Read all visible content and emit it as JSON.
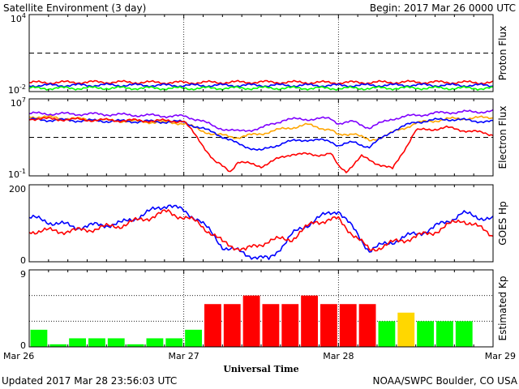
{
  "header": {
    "title": "Satellite Environment (3 day)",
    "begin_label": "Begin:  2017 Mar 26 0000 UTC"
  },
  "footer": {
    "updated": "Updated 2017 Mar 28 23:56:03 UTC",
    "credit": "NOAA/SWPC Boulder, CO USA",
    "xlabel": "Universal Time"
  },
  "colors": {
    "red": "#ff0000",
    "blue": "#0000ff",
    "green": "#00ff00",
    "purple": "#7f00ff",
    "orange": "#ffa500",
    "yellow": "#ffd700"
  },
  "chart_data": [
    {
      "type": "line",
      "name": "proton",
      "ylabel": "Proton Flux",
      "scale": "log",
      "ylim": [
        0.01,
        10000
      ],
      "y_tick_labels": [
        "10^4",
        "10^-2"
      ],
      "threshold": 10,
      "x_days": [
        0,
        3
      ],
      "series": [
        {
          "color": "red",
          "x": [
            0,
            0.5,
            1,
            1.5,
            2,
            2.5,
            3
          ],
          "values": [
            0.05,
            0.055,
            0.05,
            0.055,
            0.05,
            0.055,
            0.05
          ]
        },
        {
          "color": "blue",
          "x": [
            0,
            0.5,
            1,
            1.5,
            2,
            2.5,
            3
          ],
          "values": [
            0.03,
            0.032,
            0.03,
            0.031,
            0.03,
            0.032,
            0.03
          ]
        },
        {
          "color": "green",
          "x": [
            0,
            0.5,
            1,
            1.5,
            2,
            2.5,
            3
          ],
          "values": [
            0.018,
            0.019,
            0.018,
            0.019,
            0.018,
            0.019,
            0.018
          ]
        }
      ]
    },
    {
      "type": "line",
      "name": "electron",
      "ylabel": "Electron Flux",
      "scale": "log",
      "ylim": [
        0.1,
        10000000
      ],
      "y_tick_labels": [
        "10^7",
        "10^-1"
      ],
      "threshold": 1000,
      "x_days": [
        0,
        3
      ],
      "series": [
        {
          "color": "purple",
          "x": [
            0,
            0.5,
            1,
            1.1,
            1.2,
            1.35,
            1.5,
            1.65,
            1.8,
            1.95,
            2,
            2.1,
            2.2,
            2.35,
            2.5,
            2.7,
            3
          ],
          "values": [
            300000,
            250000,
            150000,
            70000,
            12000,
            4000,
            9000,
            70000,
            80000,
            90000,
            30000,
            40000,
            10000,
            90000,
            200000,
            400000,
            500000
          ]
        },
        {
          "color": "orange",
          "x": [
            0,
            0.5,
            1,
            1.1,
            1.2,
            1.35,
            1.5,
            1.65,
            1.8,
            1.95,
            2,
            2.1,
            2.2,
            2.35,
            2.5,
            2.7,
            3
          ],
          "values": [
            150000,
            60000,
            30000,
            6000,
            2000,
            1000,
            2500,
            8000,
            20000,
            6000,
            1500,
            3000,
            400,
            3000,
            30000,
            80000,
            120000
          ]
        },
        {
          "color": "blue",
          "x": [
            0,
            0.5,
            1,
            1.1,
            1.2,
            1.35,
            1.5,
            1.65,
            1.8,
            1.95,
            2,
            2.1,
            2.2,
            2.35,
            2.5,
            2.7,
            3
          ],
          "values": [
            70000,
            50000,
            40000,
            10000,
            3000,
            200,
            40,
            300,
            600,
            400,
            150,
            300,
            100,
            5000,
            40000,
            80000,
            40000
          ]
        },
        {
          "color": "red",
          "x": [
            0,
            0.5,
            1,
            1.1,
            1.2,
            1.3,
            1.35,
            1.5,
            1.6,
            1.7,
            1.85,
            1.95,
            2,
            2.05,
            2.15,
            2.25,
            2.35,
            2.5,
            2.7,
            3
          ],
          "values": [
            90000,
            60000,
            50000,
            500,
            3,
            0.3,
            3,
            1,
            5,
            20,
            15,
            20,
            1,
            0.3,
            10,
            2,
            0.5,
            5000,
            10000,
            2000
          ]
        }
      ]
    },
    {
      "type": "line",
      "name": "goes_hp",
      "ylabel": "GOES Hp",
      "ylim": [
        0,
        200
      ],
      "y_tick_labels": [
        "200",
        "0"
      ],
      "x_days": [
        0,
        3
      ],
      "series": [
        {
          "color": "blue",
          "x": [
            0,
            0.3,
            0.6,
            0.9,
            1.1,
            1.25,
            1.4,
            1.55,
            1.7,
            1.85,
            2,
            2.2,
            2.4,
            2.6,
            2.8,
            3
          ],
          "values": [
            115,
            90,
            100,
            150,
            110,
            40,
            20,
            5,
            70,
            110,
            135,
            30,
            60,
            85,
            125,
            110
          ]
        },
        {
          "color": "red",
          "x": [
            0,
            0.3,
            0.6,
            0.9,
            1.1,
            1.25,
            1.4,
            1.55,
            1.7,
            1.85,
            2,
            2.2,
            2.4,
            2.6,
            2.8,
            3
          ],
          "values": [
            80,
            80,
            95,
            130,
            100,
            50,
            30,
            55,
            60,
            105,
            110,
            30,
            55,
            75,
            110,
            70
          ]
        }
      ]
    },
    {
      "type": "bar",
      "name": "kp",
      "ylabel": "Estimated Kp",
      "ylim": [
        0,
        9
      ],
      "y_tick_labels": [
        "9",
        "0"
      ],
      "x_tick_labels": [
        "Mar 26",
        "Mar 27",
        "Mar 28",
        "Mar 29"
      ],
      "values": [
        2,
        0.3,
        1,
        1,
        1,
        0.3,
        1,
        1,
        2,
        5,
        5,
        6,
        5,
        5,
        6,
        5,
        5,
        5,
        3,
        4,
        3,
        3,
        3
      ],
      "bar_colors": [
        "green",
        "green",
        "green",
        "green",
        "green",
        "green",
        "green",
        "green",
        "green",
        "red",
        "red",
        "red",
        "red",
        "red",
        "red",
        "red",
        "red",
        "red",
        "green",
        "yellow",
        "green",
        "green",
        "green"
      ]
    }
  ]
}
